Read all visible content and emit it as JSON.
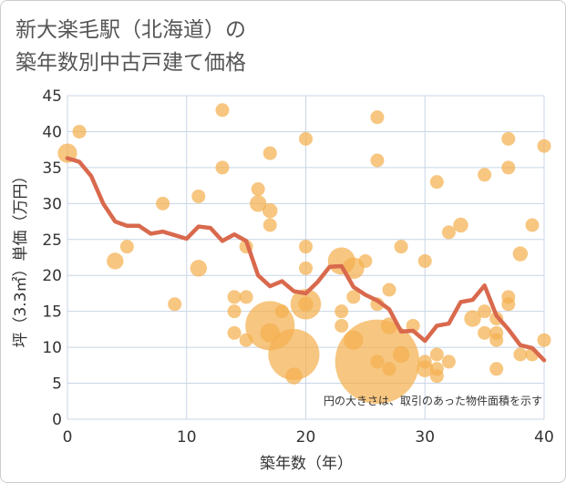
{
  "title": "新大楽毛駅（北海道）の\n築年数別中古戸建て価格",
  "chart_data": {
    "type": "scatter",
    "xlabel": "築年数（年）",
    "ylabel": "坪（3.3㎡）単価（万円）",
    "xlim": [
      0,
      40
    ],
    "ylim": [
      0,
      45
    ],
    "xticks": [
      0,
      10,
      20,
      30,
      40
    ],
    "yticks": [
      0,
      5,
      10,
      15,
      20,
      25,
      30,
      35,
      40,
      45
    ],
    "grid": true,
    "note": "円の大きさは、取引のあった物件面積を示す",
    "colors": {
      "bubble": "#f4b04f",
      "line": "#d9694d",
      "grid": "#c8d6e6"
    },
    "bubbles": [
      {
        "x": 0,
        "y": 37,
        "s": 2
      },
      {
        "x": 1,
        "y": 40,
        "s": 1
      },
      {
        "x": 4,
        "y": 22,
        "s": 1.5
      },
      {
        "x": 5,
        "y": 24,
        "s": 1
      },
      {
        "x": 8,
        "y": 30,
        "s": 1
      },
      {
        "x": 9,
        "y": 16,
        "s": 1
      },
      {
        "x": 11,
        "y": 31,
        "s": 1
      },
      {
        "x": 11,
        "y": 21,
        "s": 1.5
      },
      {
        "x": 13,
        "y": 43,
        "s": 1
      },
      {
        "x": 13,
        "y": 35,
        "s": 1
      },
      {
        "x": 14,
        "y": 17,
        "s": 1
      },
      {
        "x": 14,
        "y": 15,
        "s": 1
      },
      {
        "x": 14,
        "y": 12,
        "s": 1
      },
      {
        "x": 15,
        "y": 24,
        "s": 1
      },
      {
        "x": 15,
        "y": 17,
        "s": 1
      },
      {
        "x": 15,
        "y": 11,
        "s": 1
      },
      {
        "x": 16,
        "y": 32,
        "s": 1
      },
      {
        "x": 16,
        "y": 30,
        "s": 1.5
      },
      {
        "x": 17,
        "y": 37,
        "s": 1
      },
      {
        "x": 17,
        "y": 29,
        "s": 1.2
      },
      {
        "x": 17,
        "y": 27,
        "s": 1
      },
      {
        "x": 17,
        "y": 13,
        "s": 13
      },
      {
        "x": 17,
        "y": 12,
        "s": 2
      },
      {
        "x": 18,
        "y": 15,
        "s": 1
      },
      {
        "x": 19,
        "y": 9,
        "s": 14
      },
      {
        "x": 19,
        "y": 6,
        "s": 1.5
      },
      {
        "x": 20,
        "y": 39,
        "s": 1
      },
      {
        "x": 20,
        "y": 24,
        "s": 1
      },
      {
        "x": 20,
        "y": 21,
        "s": 1
      },
      {
        "x": 20,
        "y": 16,
        "s": 5
      },
      {
        "x": 20,
        "y": 16,
        "s": 1.2
      },
      {
        "x": 23,
        "y": 22,
        "s": 4
      },
      {
        "x": 23,
        "y": 15,
        "s": 1
      },
      {
        "x": 23,
        "y": 13,
        "s": 1
      },
      {
        "x": 24,
        "y": 21,
        "s": 2.5
      },
      {
        "x": 24,
        "y": 17,
        "s": 1
      },
      {
        "x": 24,
        "y": 11,
        "s": 2
      },
      {
        "x": 25,
        "y": 22,
        "s": 1
      },
      {
        "x": 26,
        "y": 42,
        "s": 1
      },
      {
        "x": 26,
        "y": 36,
        "s": 1
      },
      {
        "x": 26,
        "y": 16,
        "s": 1
      },
      {
        "x": 26,
        "y": 8,
        "s": 38
      },
      {
        "x": 26,
        "y": 8,
        "s": 1
      },
      {
        "x": 27,
        "y": 18,
        "s": 1
      },
      {
        "x": 27,
        "y": 13,
        "s": 1.5
      },
      {
        "x": 27,
        "y": 7,
        "s": 1
      },
      {
        "x": 28,
        "y": 24,
        "s": 1
      },
      {
        "x": 28,
        "y": 9,
        "s": 1.5
      },
      {
        "x": 29,
        "y": 13,
        "s": 1
      },
      {
        "x": 30,
        "y": 22,
        "s": 1
      },
      {
        "x": 30,
        "y": 8,
        "s": 1
      },
      {
        "x": 30,
        "y": 7,
        "s": 1.5
      },
      {
        "x": 31,
        "y": 33,
        "s": 1
      },
      {
        "x": 31,
        "y": 9,
        "s": 1
      },
      {
        "x": 31,
        "y": 6,
        "s": 1
      },
      {
        "x": 31,
        "y": 7,
        "s": 1
      },
      {
        "x": 32,
        "y": 26,
        "s": 1
      },
      {
        "x": 32,
        "y": 8,
        "s": 1
      },
      {
        "x": 33,
        "y": 27,
        "s": 1.2
      },
      {
        "x": 34,
        "y": 14,
        "s": 1.5
      },
      {
        "x": 35,
        "y": 34,
        "s": 1
      },
      {
        "x": 35,
        "y": 15,
        "s": 1
      },
      {
        "x": 35,
        "y": 12,
        "s": 1
      },
      {
        "x": 36,
        "y": 14,
        "s": 1
      },
      {
        "x": 36,
        "y": 12,
        "s": 1
      },
      {
        "x": 36,
        "y": 11,
        "s": 1
      },
      {
        "x": 36,
        "y": 7,
        "s": 1
      },
      {
        "x": 37,
        "y": 39,
        "s": 1
      },
      {
        "x": 37,
        "y": 35,
        "s": 1
      },
      {
        "x": 37,
        "y": 17,
        "s": 1
      },
      {
        "x": 37,
        "y": 16,
        "s": 1
      },
      {
        "x": 38,
        "y": 23,
        "s": 1.2
      },
      {
        "x": 38,
        "y": 9,
        "s": 1
      },
      {
        "x": 39,
        "y": 27,
        "s": 1
      },
      {
        "x": 39,
        "y": 9,
        "s": 1
      },
      {
        "x": 40,
        "y": 38,
        "s": 1
      },
      {
        "x": 40,
        "y": 11,
        "s": 1
      }
    ],
    "line": {
      "x": [
        0,
        1,
        2,
        3,
        4,
        5,
        6,
        7,
        8,
        9,
        10,
        11,
        12,
        13,
        14,
        15,
        16,
        17,
        18,
        19,
        20,
        21,
        22,
        23,
        24,
        25,
        26,
        27,
        28,
        29,
        30,
        31,
        32,
        33,
        34,
        35,
        36,
        37,
        38,
        39,
        40
      ],
      "y": [
        36.3,
        35.8,
        33.8,
        30,
        27.5,
        26.9,
        26.9,
        25.8,
        26.1,
        25.6,
        25.1,
        26.8,
        26.6,
        24.8,
        25.7,
        24.8,
        20,
        18.5,
        19.2,
        17.8,
        17.5,
        19.1,
        21.2,
        21.3,
        18.4,
        17.3,
        16.5,
        15.3,
        12.2,
        12.3,
        10.9,
        13,
        13.3,
        16.3,
        16.6,
        18.6,
        14.4,
        12.5,
        10.3,
        9.9,
        8.2
      ]
    }
  }
}
